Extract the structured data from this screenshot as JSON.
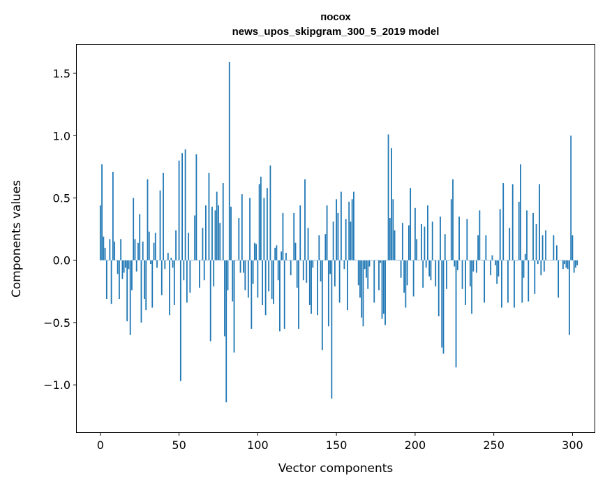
{
  "chart_data": {
    "type": "bar",
    "title": "посох",
    "subtitle": "news_upos_skipgram_300_5_2019 model",
    "xlabel": "Vector components",
    "ylabel": "Components values",
    "xlim": [
      -15,
      314
    ],
    "ylim": [
      -1.38,
      1.73
    ],
    "xticks": [
      0,
      50,
      100,
      150,
      200,
      250,
      300
    ],
    "yticks": [
      -1.0,
      -0.5,
      0.0,
      0.5,
      1.0,
      1.5
    ],
    "ytick_labels": [
      "−1.0",
      "−0.5",
      "0.0",
      "0.5",
      "1.0",
      "1.5"
    ],
    "grid": false,
    "color": "#1f77b4",
    "x_start": 0,
    "values": [
      0.44,
      0.77,
      0.19,
      0.1,
      -0.31,
      0.0,
      0.17,
      -0.35,
      0.71,
      0.15,
      0.0,
      -0.11,
      -0.31,
      0.17,
      -0.15,
      -0.1,
      -0.06,
      -0.49,
      -0.07,
      -0.6,
      -0.24,
      0.5,
      0.17,
      -0.09,
      0.14,
      0.37,
      -0.5,
      0.15,
      -0.31,
      -0.4,
      0.65,
      0.23,
      -0.03,
      -0.38,
      0.14,
      0.22,
      -0.06,
      0.0,
      0.56,
      -0.28,
      0.7,
      -0.07,
      0.0,
      0.06,
      -0.44,
      0.02,
      -0.06,
      -0.36,
      0.24,
      0.0,
      0.8,
      -0.97,
      0.86,
      -0.16,
      0.89,
      -0.34,
      0.22,
      -0.26,
      0.0,
      0.0,
      0.36,
      0.85,
      0.0,
      -0.22,
      0.0,
      0.26,
      -0.16,
      0.44,
      0.0,
      0.7,
      -0.65,
      0.43,
      -0.21,
      0.4,
      0.55,
      0.44,
      0.3,
      0.0,
      0.62,
      -0.61,
      -1.14,
      -0.24,
      1.59,
      0.43,
      -0.33,
      -0.74,
      0.0,
      0.0,
      0.34,
      -0.1,
      0.53,
      -0.1,
      -0.24,
      0.0,
      -0.3,
      0.5,
      -0.55,
      -0.19,
      0.14,
      0.13,
      -0.3,
      0.61,
      0.67,
      -0.36,
      0.5,
      -0.44,
      0.58,
      -0.25,
      0.76,
      -0.31,
      -0.35,
      0.1,
      0.12,
      -0.16,
      -0.57,
      0.07,
      0.38,
      -0.55,
      0.06,
      0.0,
      0.0,
      -0.12,
      0.0,
      0.38,
      0.14,
      -0.22,
      -0.55,
      0.44,
      0.0,
      -0.16,
      0.65,
      -0.18,
      0.26,
      -0.36,
      -0.43,
      -0.06,
      0.0,
      0.0,
      -0.44,
      0.2,
      -0.17,
      -0.72,
      0.0,
      0.21,
      0.44,
      -0.53,
      -0.11,
      -1.11,
      0.31,
      -0.21,
      0.49,
      0.38,
      -0.34,
      0.55,
      0.0,
      -0.07,
      0.33,
      -0.4,
      0.47,
      0.31,
      0.49,
      0.55,
      0.0,
      0.0,
      -0.2,
      -0.3,
      -0.46,
      -0.53,
      -0.07,
      -0.14,
      -0.23,
      -0.05,
      0.0,
      0.0,
      -0.34,
      0.0,
      0.0,
      -0.24,
      -0.02,
      -0.47,
      -0.43,
      -0.52,
      0.0,
      1.01,
      0.34,
      0.9,
      0.49,
      0.24,
      0.0,
      0.0,
      0.0,
      -0.14,
      0.3,
      -0.26,
      -0.38,
      -0.2,
      0.28,
      0.58,
      0.0,
      -0.29,
      0.42,
      0.17,
      0.0,
      0.0,
      0.29,
      -0.22,
      0.27,
      -0.06,
      0.44,
      -0.13,
      -0.16,
      0.31,
      0.0,
      -0.21,
      0.0,
      -0.45,
      0.35,
      -0.7,
      -0.75,
      0.21,
      -0.23,
      0.0,
      0.0,
      0.49,
      0.65,
      -0.05,
      -0.86,
      -0.08,
      0.35,
      0.0,
      -0.23,
      0.0,
      -0.36,
      0.33,
      0.0,
      -0.21,
      -0.43,
      -0.09,
      0.0,
      -0.1,
      0.2,
      0.4,
      0.0,
      0.0,
      -0.34,
      0.2,
      0.0,
      0.0,
      -0.12,
      0.04,
      0.0,
      -0.04,
      -0.19,
      -0.13,
      0.41,
      -0.38,
      0.62,
      0.0,
      0.0,
      -0.34,
      0.26,
      0.0,
      0.61,
      -0.38,
      0.0,
      0.0,
      0.47,
      0.77,
      -0.34,
      -0.14,
      0.05,
      0.4,
      -0.33,
      0.0,
      0.0,
      0.38,
      -0.27,
      0.29,
      -0.03,
      0.61,
      -0.12,
      0.2,
      -0.09,
      0.24,
      0.0,
      0.0,
      0.0,
      0.0,
      0.2,
      0.0,
      0.12,
      -0.3,
      0.0,
      0.0,
      -0.07,
      -0.03,
      -0.06,
      -0.07,
      -0.6,
      1.0,
      0.2,
      -0.1,
      -0.06,
      -0.04
    ]
  }
}
